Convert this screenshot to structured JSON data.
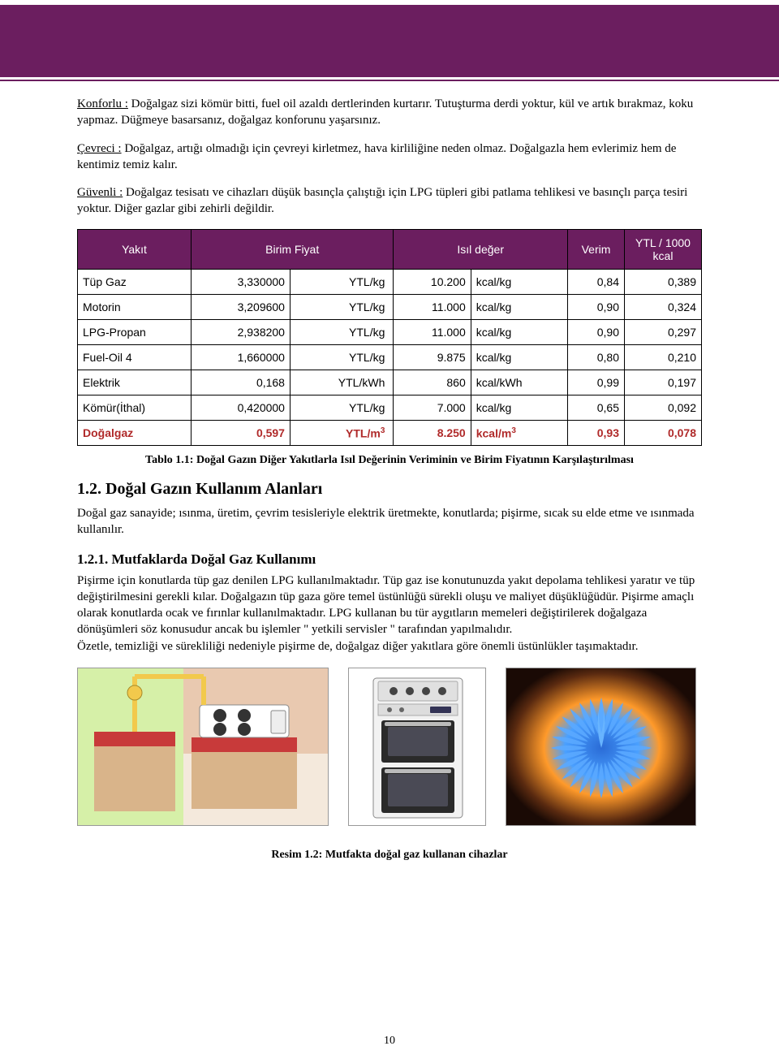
{
  "colors": {
    "header_bg": "#6b1e5f",
    "highlight_text": "#b02a2a",
    "border": "#000000",
    "page_bg": "#ffffff"
  },
  "paragraphs": {
    "p1_lead": "Konforlu :",
    "p1_body": " Doğalgaz sizi kömür bitti, fuel oil azaldı dertlerinden kurtarır. Tutuşturma derdi yoktur, kül ve artık bırakmaz, koku yapmaz. Düğmeye basarsanız, doğalgaz konforunu yaşarsınız.",
    "p2_lead": "Çevreci :",
    "p2_body": " Doğalgaz, artığı olmadığı için çevreyi kirletmez, hava kirliliğine neden olmaz. Doğalgazla hem evlerimiz hem de kentimiz temiz kalır.",
    "p3_lead": "Güvenli :",
    "p3_body": " Doğalgaz tesisatı ve cihazları düşük basınçla çalıştığı için LPG tüpleri gibi patlama tehlikesi ve basınçlı parça tesiri yoktur. Diğer gazlar gibi zehirli değildir."
  },
  "table": {
    "headers": {
      "yakit": "Yakıt",
      "birim_fiyat": "Birim Fiyat",
      "isil_deger": "Isıl değer",
      "verim": "Verim",
      "ytl": "YTL / 1000 kcal"
    },
    "rows": [
      {
        "name": "Tüp Gaz",
        "price": "3,330000",
        "punit": "YTL/kg",
        "hval": "10.200",
        "hunit": "kcal/kg",
        "ver": "0,84",
        "cost": "0,389",
        "hl": false
      },
      {
        "name": "Motorin",
        "price": "3,209600",
        "punit": "YTL/kg",
        "hval": "11.000",
        "hunit": "kcal/kg",
        "ver": "0,90",
        "cost": "0,324",
        "hl": false
      },
      {
        "name": "LPG-Propan",
        "price": "2,938200",
        "punit": "YTL/kg",
        "hval": "11.000",
        "hunit": "kcal/kg",
        "ver": "0,90",
        "cost": "0,297",
        "hl": false
      },
      {
        "name": "Fuel-Oil 4",
        "price": "1,660000",
        "punit": "YTL/kg",
        "hval": "9.875",
        "hunit": "kcal/kg",
        "ver": "0,80",
        "cost": "0,210",
        "hl": false
      },
      {
        "name": "Elektrik",
        "price": "0,168",
        "punit": "YTL/kWh",
        "hval": "860",
        "hunit": "kcal/kWh",
        "ver": "0,99",
        "cost": "0,197",
        "hl": false
      },
      {
        "name": "Kömür(İthal)",
        "price": "0,420000",
        "punit": "YTL/kg",
        "hval": "7.000",
        "hunit": "kcal/kg",
        "ver": "0,65",
        "cost": "0,092",
        "hl": false
      },
      {
        "name": "Doğalgaz",
        "price": "0,597",
        "punit": "YTL/m³",
        "hval": "8.250",
        "hunit": "kcal/m³",
        "ver": "0,93",
        "cost": "0,078",
        "hl": true
      }
    ]
  },
  "table_caption": "Tablo 1.1: Doğal Gazın Diğer Yakıtlarla Isıl Değerinin Veriminin ve Birim Fiyatının Karşılaştırılması",
  "section_1_2": "1.2. Doğal Gazın Kullanım Alanları",
  "section_1_2_body": "Doğal gaz sanayide; ısınma, üretim, çevrim tesisleriyle elektrik üretmekte, konutlarda; pişirme, sıcak su elde etme ve ısınmada kullanılır.",
  "section_1_2_1": "1.2.1.  Mutfaklarda Doğal Gaz Kullanımı",
  "section_1_2_1_body": "Pişirme için konutlarda tüp gaz denilen LPG kullanılmaktadır. Tüp gaz ise konutunuzda yakıt depolama tehlikesi yaratır ve tüp değiştirilmesini gerekli kılar. Doğalgazın tüp gaza göre temel üstünlüğü sürekli oluşu ve maliyet düşüklüğüdür. Pişirme amaçlı olarak konutlarda ocak ve fırınlar kullanılmaktadır.  LPG kullanan bu tür aygıtların memeleri değiştirilerek doğalgaza dönüşümleri söz konusudur ancak bu işlemler \" yetkili servisler \" tarafından yapılmalıdır.\nÖzetle, temizliği ve sürekliliği nedeniyle pişirme de, doğalgaz diğer yakıtlara göre önemli üstünlükler taşımaktadır.",
  "figure_caption": "Resim 1.2: Mutfakta doğal gaz kullanan cihazlar",
  "page_number": "10",
  "images": {
    "kitchen_alt": "kitchen-stove-illustration",
    "oven_alt": "freestanding-oven",
    "flame_alt": "gas-burner-flame"
  }
}
